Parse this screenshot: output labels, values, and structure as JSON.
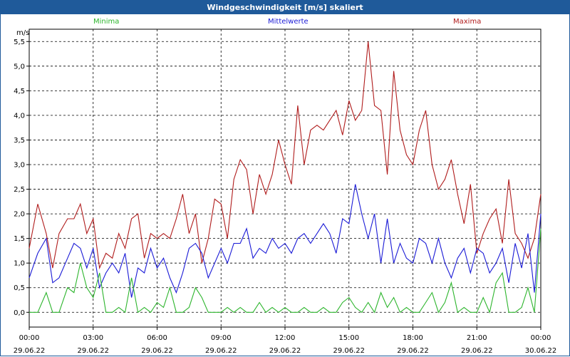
{
  "window": {
    "title": "Windgeschwindigkeit [m/s] skaliert"
  },
  "colors": {
    "titlebar": "#1f5a9a",
    "Minima": "#2db52d",
    "Mittelwerte": "#1a1ad6",
    "Maxima": "#b01c1c"
  },
  "chart_data": {
    "type": "line",
    "title": "Windgeschwindigkeit [m/s] skaliert",
    "ylabel": "m/s",
    "xlabel": "",
    "ylim": [
      -0.3,
      5.75
    ],
    "grid": true,
    "legend_position": "top",
    "yticks": [
      "0,0",
      "0,5",
      "1,0",
      "1,5",
      "2,0",
      "2,5",
      "3,0",
      "3,5",
      "4,0",
      "4,5",
      "5,0",
      "5,5"
    ],
    "ytick_values": [
      0,
      0.5,
      1,
      1.5,
      2,
      2.5,
      3,
      3.5,
      4,
      4.5,
      5,
      5.5
    ],
    "xticks": [
      {
        "time": "00:00",
        "date": "29.06.22"
      },
      {
        "time": "03:00",
        "date": "29.06.22"
      },
      {
        "time": "06:00",
        "date": "29.06.22"
      },
      {
        "time": "09:00",
        "date": "29.06.22"
      },
      {
        "time": "12:00",
        "date": "29.06.22"
      },
      {
        "time": "15:00",
        "date": "29.06.22"
      },
      {
        "time": "18:00",
        "date": "29.06.22"
      },
      {
        "time": "21:00",
        "date": "29.06.22"
      },
      {
        "time": "00:00",
        "date": "30.06.22"
      }
    ],
    "xtick_hours": [
      0,
      3,
      6,
      9,
      12,
      15,
      18,
      21,
      24
    ],
    "xlim_hours": [
      0,
      24
    ],
    "series": [
      {
        "name": "Maxima",
        "x": [
          0,
          0.4,
          0.8,
          1.1,
          1.4,
          1.8,
          2.1,
          2.4,
          2.7,
          3.0,
          3.3,
          3.6,
          3.9,
          4.2,
          4.5,
          4.8,
          5.1,
          5.4,
          5.7,
          6.0,
          6.3,
          6.6,
          6.9,
          7.2,
          7.5,
          7.8,
          8.1,
          8.4,
          8.7,
          9.0,
          9.3,
          9.6,
          9.9,
          10.2,
          10.5,
          10.8,
          11.1,
          11.4,
          11.7,
          12.0,
          12.3,
          12.6,
          12.9,
          13.2,
          13.5,
          13.8,
          14.1,
          14.4,
          14.7,
          15.0,
          15.3,
          15.6,
          15.9,
          16.2,
          16.5,
          16.8,
          17.1,
          17.4,
          17.7,
          18.0,
          18.3,
          18.6,
          18.9,
          19.2,
          19.5,
          19.8,
          20.1,
          20.4,
          20.7,
          21.0,
          21.3,
          21.6,
          21.9,
          22.2,
          22.5,
          22.8,
          23.1,
          23.4,
          23.7,
          24.0
        ],
        "y": [
          1.3,
          2.2,
          1.6,
          0.9,
          1.6,
          1.9,
          1.9,
          2.2,
          1.6,
          1.9,
          0.9,
          1.2,
          1.1,
          1.6,
          1.3,
          1.9,
          2.0,
          1.1,
          1.6,
          1.5,
          1.6,
          1.5,
          1.9,
          2.4,
          1.6,
          2.0,
          1.0,
          1.5,
          2.3,
          2.2,
          1.5,
          2.7,
          3.1,
          2.9,
          2.0,
          2.8,
          2.4,
          2.8,
          3.5,
          3.0,
          2.6,
          4.2,
          3.0,
          3.7,
          3.8,
          3.7,
          3.9,
          4.1,
          3.6,
          4.3,
          3.9,
          4.1,
          5.5,
          4.2,
          4.1,
          2.8,
          4.9,
          3.7,
          3.2,
          3.0,
          3.7,
          4.1,
          3.0,
          2.5,
          2.7,
          3.1,
          2.4,
          1.8,
          2.6,
          1.2,
          1.6,
          1.9,
          2.1,
          1.4,
          2.7,
          1.6,
          1.4,
          1.1,
          1.5,
          2.4
        ]
      },
      {
        "name": "Mittelwerte",
        "x": [
          0,
          0.4,
          0.8,
          1.1,
          1.4,
          1.8,
          2.1,
          2.4,
          2.7,
          3.0,
          3.3,
          3.6,
          3.9,
          4.2,
          4.5,
          4.8,
          5.1,
          5.4,
          5.7,
          6.0,
          6.3,
          6.6,
          6.9,
          7.2,
          7.5,
          7.8,
          8.1,
          8.4,
          8.7,
          9.0,
          9.3,
          9.6,
          9.9,
          10.2,
          10.5,
          10.8,
          11.1,
          11.4,
          11.7,
          12.0,
          12.3,
          12.6,
          12.9,
          13.2,
          13.5,
          13.8,
          14.1,
          14.4,
          14.7,
          15.0,
          15.3,
          15.6,
          15.9,
          16.2,
          16.5,
          16.8,
          17.1,
          17.4,
          17.7,
          18.0,
          18.3,
          18.6,
          18.9,
          19.2,
          19.5,
          19.8,
          20.1,
          20.4,
          20.7,
          21.0,
          21.3,
          21.6,
          21.9,
          22.2,
          22.5,
          22.8,
          23.1,
          23.4,
          23.7,
          24.0
        ],
        "y": [
          0.7,
          1.2,
          1.5,
          0.6,
          0.7,
          1.1,
          1.4,
          1.3,
          0.9,
          1.3,
          0.5,
          0.8,
          1.0,
          0.8,
          1.2,
          0.3,
          0.9,
          0.8,
          1.3,
          0.9,
          1.1,
          0.7,
          0.4,
          0.8,
          1.3,
          1.4,
          1.2,
          0.7,
          1.0,
          1.3,
          1.0,
          1.4,
          1.4,
          1.7,
          1.1,
          1.3,
          1.2,
          1.5,
          1.3,
          1.4,
          1.2,
          1.5,
          1.6,
          1.4,
          1.6,
          1.8,
          1.6,
          1.2,
          1.9,
          1.8,
          2.6,
          2.0,
          1.5,
          2.0,
          1.0,
          1.9,
          1.0,
          1.4,
          1.1,
          1.0,
          1.5,
          1.4,
          1.0,
          1.5,
          1.0,
          0.7,
          1.1,
          1.3,
          0.8,
          1.3,
          1.2,
          0.8,
          1.0,
          1.3,
          0.6,
          1.4,
          0.9,
          1.6,
          0.4,
          2.0
        ]
      },
      {
        "name": "Minima",
        "x": [
          0,
          0.4,
          0.8,
          1.1,
          1.4,
          1.8,
          2.1,
          2.4,
          2.7,
          3.0,
          3.3,
          3.6,
          3.9,
          4.2,
          4.5,
          4.8,
          5.1,
          5.4,
          5.7,
          6.0,
          6.3,
          6.6,
          6.9,
          7.2,
          7.5,
          7.8,
          8.1,
          8.4,
          8.7,
          9.0,
          9.3,
          9.6,
          9.9,
          10.2,
          10.5,
          10.8,
          11.1,
          11.4,
          11.7,
          12.0,
          12.3,
          12.6,
          12.9,
          13.2,
          13.5,
          13.8,
          14.1,
          14.4,
          14.7,
          15.0,
          15.3,
          15.6,
          15.9,
          16.2,
          16.5,
          16.8,
          17.1,
          17.4,
          17.7,
          18.0,
          18.3,
          18.6,
          18.9,
          19.2,
          19.5,
          19.8,
          20.1,
          20.4,
          20.7,
          21.0,
          21.3,
          21.6,
          21.9,
          22.2,
          22.5,
          22.8,
          23.1,
          23.4,
          23.7,
          24.0
        ],
        "y": [
          0.0,
          0.0,
          0.4,
          0.0,
          0.0,
          0.5,
          0.4,
          1.0,
          0.5,
          0.3,
          0.8,
          0.0,
          0.0,
          0.1,
          0.0,
          0.7,
          0.0,
          0.1,
          0.0,
          0.2,
          0.1,
          0.5,
          0.0,
          0.0,
          0.1,
          0.5,
          0.3,
          0.0,
          0.0,
          0.0,
          0.1,
          0.0,
          0.1,
          0.0,
          0.0,
          0.2,
          0.0,
          0.1,
          0.0,
          0.1,
          0.0,
          0.0,
          0.1,
          0.0,
          0.0,
          0.1,
          0.0,
          0.0,
          0.2,
          0.3,
          0.1,
          0.0,
          0.2,
          0.0,
          0.4,
          0.1,
          0.3,
          0.0,
          0.1,
          0.0,
          0.0,
          0.2,
          0.4,
          0.0,
          0.2,
          0.6,
          0.0,
          0.1,
          0.0,
          0.0,
          0.3,
          0.0,
          0.6,
          0.8,
          0.0,
          0.0,
          0.1,
          0.5,
          0.0,
          1.7
        ]
      }
    ]
  }
}
